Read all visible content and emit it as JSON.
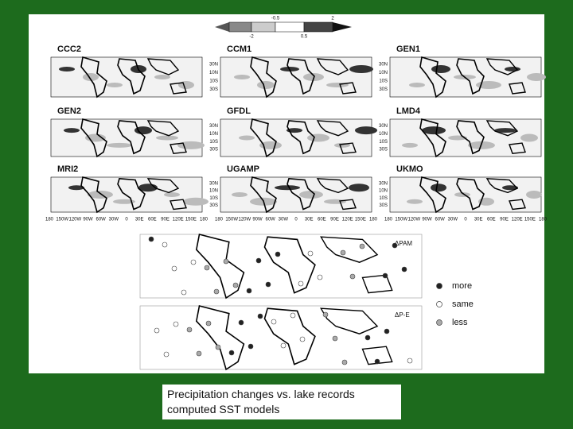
{
  "colorbar": {
    "labels_top": [
      "-0.5",
      "2"
    ],
    "labels_bottom": [
      "-2",
      "0.5"
    ]
  },
  "panels": [
    {
      "title": "CCC2"
    },
    {
      "title": "CCM1"
    },
    {
      "title": "GEN1"
    },
    {
      "title": "GEN2"
    },
    {
      "title": "GFDL"
    },
    {
      "title": "LMD4"
    },
    {
      "title": "MRI2"
    },
    {
      "title": "UGAMP"
    },
    {
      "title": "UKMO"
    }
  ],
  "lat_labels": [
    "30N",
    "10N",
    "10S",
    "30S"
  ],
  "lon_labels": [
    "180",
    "150W",
    "120W",
    "90W",
    "60W",
    "30W",
    "0",
    "30E",
    "60E",
    "90E",
    "120E",
    "150E",
    "180"
  ],
  "lake_maps": [
    {
      "label": "ΔPAM"
    },
    {
      "label": "ΔP-E"
    }
  ],
  "legend": [
    {
      "label": "more"
    },
    {
      "label": "same"
    },
    {
      "label": "less"
    }
  ],
  "caption": [
    "Precipitation changes vs. lake records",
    "computed SST models"
  ]
}
